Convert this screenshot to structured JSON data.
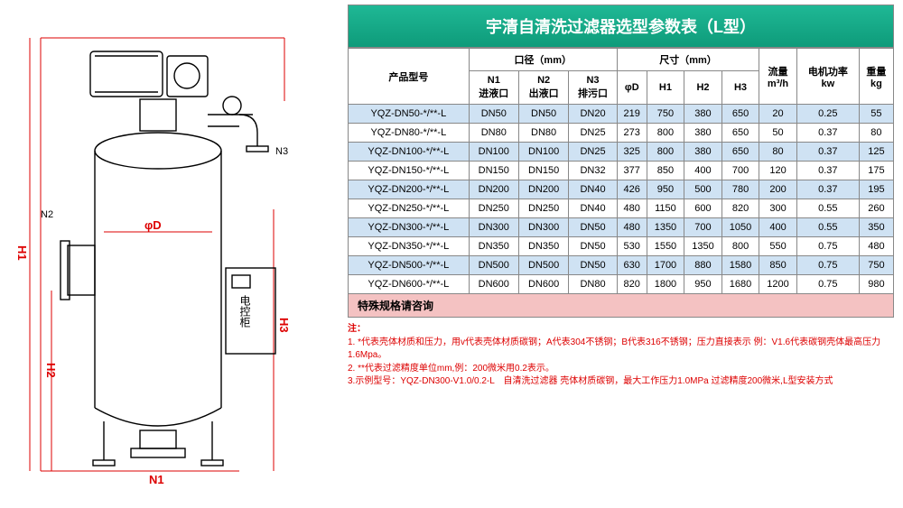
{
  "title": "宇清自清洗过滤器选型参数表（L型）",
  "diagram": {
    "labels": {
      "N1": "N1",
      "N2": "N2",
      "N3": "N3",
      "H1": "H1",
      "H2": "H2",
      "H3": "H3",
      "phiD": "φD",
      "control_box": "电控柜"
    }
  },
  "headers": {
    "model": "产品型号",
    "caliber_group": "口径（mm）",
    "size_group": "尺寸（mm）",
    "flow": "流量",
    "flow_unit": "m³/h",
    "motor": "电机功率",
    "motor_unit": "kw",
    "weight": "重量",
    "weight_unit": "kg",
    "N1": "N1",
    "N1_sub": "进液口",
    "N2": "N2",
    "N2_sub": "出液口",
    "N3": "N3",
    "N3_sub": "排污口",
    "phiD": "φD",
    "H1": "H1",
    "H2": "H2",
    "H3": "H3"
  },
  "rows": [
    {
      "model": "YQZ-DN50-*/**-L",
      "n1": "DN50",
      "n2": "DN50",
      "n3": "DN20",
      "d": "219",
      "h1": "750",
      "h2": "380",
      "h3": "650",
      "flow": "20",
      "kw": "0.25",
      "kg": "55",
      "cls": "row-blue"
    },
    {
      "model": "YQZ-DN80-*/**-L",
      "n1": "DN80",
      "n2": "DN80",
      "n3": "DN25",
      "d": "273",
      "h1": "800",
      "h2": "380",
      "h3": "650",
      "flow": "50",
      "kw": "0.37",
      "kg": "80",
      "cls": "row-white"
    },
    {
      "model": "YQZ-DN100-*/**-L",
      "n1": "DN100",
      "n2": "DN100",
      "n3": "DN25",
      "d": "325",
      "h1": "800",
      "h2": "380",
      "h3": "650",
      "flow": "80",
      "kw": "0.37",
      "kg": "125",
      "cls": "row-blue"
    },
    {
      "model": "YQZ-DN150-*/**-L",
      "n1": "DN150",
      "n2": "DN150",
      "n3": "DN32",
      "d": "377",
      "h1": "850",
      "h2": "400",
      "h3": "700",
      "flow": "120",
      "kw": "0.37",
      "kg": "175",
      "cls": "row-white"
    },
    {
      "model": "YQZ-DN200-*/**-L",
      "n1": "DN200",
      "n2": "DN200",
      "n3": "DN40",
      "d": "426",
      "h1": "950",
      "h2": "500",
      "h3": "780",
      "flow": "200",
      "kw": "0.37",
      "kg": "195",
      "cls": "row-blue"
    },
    {
      "model": "YQZ-DN250-*/**-L",
      "n1": "DN250",
      "n2": "DN250",
      "n3": "DN40",
      "d": "480",
      "h1": "1150",
      "h2": "600",
      "h3": "820",
      "flow": "300",
      "kw": "0.55",
      "kg": "260",
      "cls": "row-white"
    },
    {
      "model": "YQZ-DN300-*/**-L",
      "n1": "DN300",
      "n2": "DN300",
      "n3": "DN50",
      "d": "480",
      "h1": "1350",
      "h2": "700",
      "h3": "1050",
      "flow": "400",
      "kw": "0.55",
      "kg": "350",
      "cls": "row-blue"
    },
    {
      "model": "YQZ-DN350-*/**-L",
      "n1": "DN350",
      "n2": "DN350",
      "n3": "DN50",
      "d": "530",
      "h1": "1550",
      "h2": "1350",
      "h3": "800",
      "flow": "550",
      "kw": "0.75",
      "kg": "480",
      "cls": "row-white"
    },
    {
      "model": "YQZ-DN500-*/**-L",
      "n1": "DN500",
      "n2": "DN500",
      "n3": "DN50",
      "d": "630",
      "h1": "1700",
      "h2": "880",
      "h3": "1580",
      "flow": "850",
      "kw": "0.75",
      "kg": "750",
      "cls": "row-blue"
    },
    {
      "model": "YQZ-DN600-*/**-L",
      "n1": "DN600",
      "n2": "DN600",
      "n3": "DN80",
      "d": "820",
      "h1": "1800",
      "h2": "950",
      "h3": "1680",
      "flow": "1200",
      "kw": "0.75",
      "kg": "980",
      "cls": "row-white"
    }
  ],
  "special_row": "特殊规格请咨询",
  "notes": {
    "title": "注：",
    "l1": "1. *代表壳体材质和压力，用v代表壳体材质碳钢；A代表304不锈钢；B代表316不锈钢；压力直接表示 例：V1.6代表碳钢壳体最高压力1.6Mpa。",
    "l2": "2. **代表过滤精度单位mm,例：200微米用0.2表示。",
    "l3": "3.示例型号：YQZ-DN300-V1.0/0.2-L　自清洗过滤器  壳体材质碳钢，最大工作压力1.0MPa 过滤精度200微米,L型安装方式"
  },
  "colors": {
    "title_bg_top": "#1fb895",
    "title_bg_bot": "#0e9b7a",
    "row_blue": "#cfe2f3",
    "row_pink": "#f4c2c2",
    "notes_color": "#d00",
    "dim_color": "#d00",
    "border": "#888"
  }
}
